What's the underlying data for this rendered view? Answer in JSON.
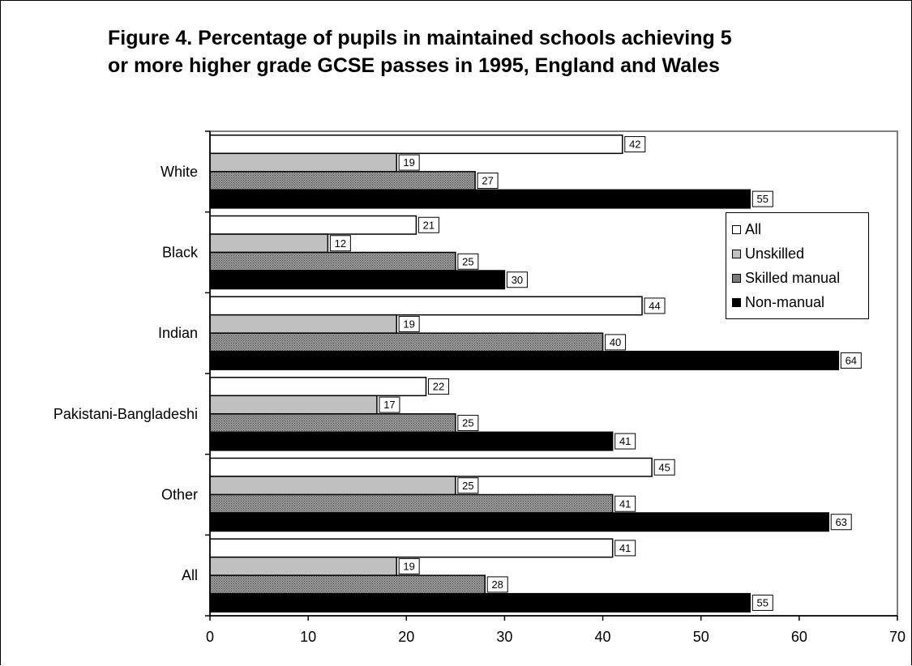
{
  "chart_data": {
    "type": "bar",
    "orientation": "horizontal",
    "title": "Figure 4. Percentage of pupils in maintained schools achieving 5 or more higher grade GCSE passes in 1995, England and Wales",
    "categories": [
      "White",
      "Black",
      "Indian",
      "Pakistani-Bangladeshi",
      "Other",
      "All"
    ],
    "series": [
      {
        "name": "All",
        "values": [
          42,
          21,
          44,
          22,
          45,
          41
        ],
        "color": "#ffffff",
        "pattern": "none"
      },
      {
        "name": "Unskilled",
        "values": [
          19,
          12,
          19,
          17,
          25,
          19
        ],
        "color": "#c0c0c0",
        "pattern": "none"
      },
      {
        "name": "Skilled manual",
        "values": [
          27,
          25,
          40,
          25,
          41,
          28
        ],
        "color": "#808080",
        "pattern": "dots"
      },
      {
        "name": "Non-manual",
        "values": [
          55,
          30,
          64,
          41,
          63,
          55
        ],
        "color": "#000000",
        "pattern": "none"
      }
    ],
    "xlim": [
      0,
      70
    ],
    "xticks": [
      "0",
      "10",
      "20",
      "30",
      "40",
      "50",
      "60",
      "70"
    ],
    "xlabel": "",
    "ylabel": "",
    "grid": false,
    "legend_position": "right",
    "data_labels": true
  }
}
